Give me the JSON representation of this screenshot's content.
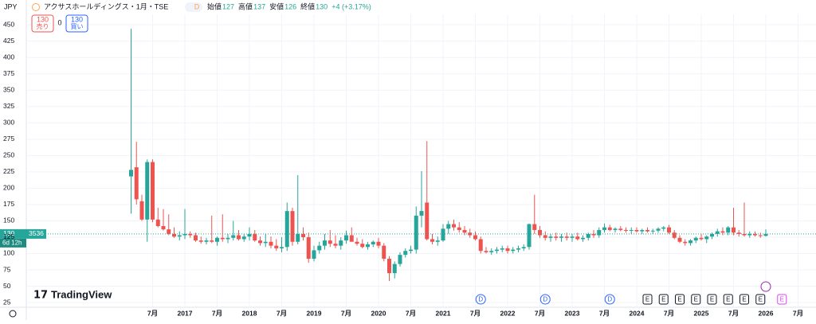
{
  "header": {
    "currency": "JPY",
    "symbol": "アクサスホールディングス・1月・TSE",
    "badge": "D",
    "ohlc": [
      {
        "label": "始値",
        "value": 127
      },
      {
        "label": "高値",
        "value": 137
      },
      {
        "label": "安値",
        "value": 126
      },
      {
        "label": "終値",
        "value": 130
      }
    ],
    "change": "+4 (+3.17%)"
  },
  "trade": {
    "sell_price": "130",
    "sell_label": "売り",
    "spread": "0",
    "buy_price": "130",
    "buy_label": "買い"
  },
  "price_tag": {
    "price": "130",
    "volume": "3536",
    "countdown": "6d 12h"
  },
  "logo": "TradingView",
  "events": [
    {
      "x": "2021-08",
      "label": "D"
    },
    {
      "x": "2022-08",
      "label": "D"
    },
    {
      "x": "2023-08",
      "label": "D"
    },
    {
      "x": "2024-03",
      "label": "E"
    },
    {
      "x": "2024-06",
      "label": "E"
    },
    {
      "x": "2024-09",
      "label": "E"
    },
    {
      "x": "2024-12",
      "label": "E"
    },
    {
      "x": "2025-03",
      "label": "E"
    },
    {
      "x": "2025-06",
      "label": "E"
    },
    {
      "x": "2025-09",
      "label": "E"
    },
    {
      "x": "2025-12",
      "label": "E"
    },
    {
      "x": "2026-04",
      "label": "E"
    }
  ],
  "chart_data": {
    "type": "candlestick",
    "up_color": "#26a69a",
    "down_color": "#ef5350",
    "grid": true,
    "last_price": 130,
    "ylim": [
      19,
      466
    ],
    "yticks": [
      25,
      50,
      75,
      100,
      125,
      150,
      175,
      200,
      225,
      250,
      275,
      300,
      325,
      350,
      375,
      400,
      425,
      450
    ],
    "xticks": [
      {
        "value": "2016-07",
        "label": "7月"
      },
      {
        "value": "2017-01",
        "label": "2017"
      },
      {
        "value": "2017-07",
        "label": "7月"
      },
      {
        "value": "2018-01",
        "label": "2018"
      },
      {
        "value": "2018-07",
        "label": "7月"
      },
      {
        "value": "2019-01",
        "label": "2019"
      },
      {
        "value": "2019-07",
        "label": "7月"
      },
      {
        "value": "2020-01",
        "label": "2020"
      },
      {
        "value": "2020-07",
        "label": "7月"
      },
      {
        "value": "2021-01",
        "label": "2021"
      },
      {
        "value": "2021-07",
        "label": "7月"
      },
      {
        "value": "2022-01",
        "label": "2022"
      },
      {
        "value": "2022-07",
        "label": "7月"
      },
      {
        "value": "2023-01",
        "label": "2023"
      },
      {
        "value": "2023-07",
        "label": "7月"
      },
      {
        "value": "2024-01",
        "label": "2024"
      },
      {
        "value": "2024-07",
        "label": "7月"
      },
      {
        "value": "2025-01",
        "label": "2025"
      },
      {
        "value": "2025-07",
        "label": "7月"
      },
      {
        "value": "2026-01",
        "label": "2026"
      },
      {
        "value": "2026-07",
        "label": "7月"
      }
    ],
    "x": [
      "2016-03",
      "2016-04",
      "2016-05",
      "2016-06",
      "2016-07",
      "2016-08",
      "2016-09",
      "2016-10",
      "2016-11",
      "2016-12",
      "2017-01",
      "2017-02",
      "2017-03",
      "2017-04",
      "2017-05",
      "2017-06",
      "2017-07",
      "2017-08",
      "2017-09",
      "2017-10",
      "2017-11",
      "2017-12",
      "2018-01",
      "2018-02",
      "2018-03",
      "2018-04",
      "2018-05",
      "2018-06",
      "2018-07",
      "2018-08",
      "2018-09",
      "2018-10",
      "2018-11",
      "2018-12",
      "2019-01",
      "2019-02",
      "2019-03",
      "2019-04",
      "2019-05",
      "2019-06",
      "2019-07",
      "2019-08",
      "2019-09",
      "2019-10",
      "2019-11",
      "2019-12",
      "2020-01",
      "2020-02",
      "2020-03",
      "2020-04",
      "2020-05",
      "2020-06",
      "2020-07",
      "2020-08",
      "2020-09",
      "2020-10",
      "2020-11",
      "2020-12",
      "2021-01",
      "2021-02",
      "2021-03",
      "2021-04",
      "2021-05",
      "2021-06",
      "2021-07",
      "2021-08",
      "2021-09",
      "2021-10",
      "2021-11",
      "2021-12",
      "2022-01",
      "2022-02",
      "2022-03",
      "2022-04",
      "2022-05",
      "2022-06",
      "2022-07",
      "2022-08",
      "2022-09",
      "2022-10",
      "2022-11",
      "2022-12",
      "2023-01",
      "2023-02",
      "2023-03",
      "2023-04",
      "2023-05",
      "2023-06",
      "2023-07",
      "2023-08",
      "2023-09",
      "2023-10",
      "2023-11",
      "2023-12",
      "2024-01",
      "2024-02",
      "2024-03",
      "2024-04",
      "2024-05",
      "2024-06",
      "2024-07",
      "2024-08",
      "2024-09",
      "2024-10",
      "2024-11",
      "2024-12",
      "2025-01",
      "2025-02",
      "2025-03",
      "2025-04",
      "2025-05",
      "2025-06",
      "2025-07",
      "2025-08",
      "2025-09",
      "2025-10",
      "2025-11",
      "2025-12",
      "2026-01"
    ],
    "open": [
      218,
      232,
      180,
      152,
      240,
      152,
      142,
      137,
      130,
      126,
      128,
      130,
      128,
      120,
      118,
      120,
      118,
      124,
      122,
      124,
      128,
      122,
      126,
      130,
      120,
      116,
      118,
      112,
      108,
      110,
      165,
      118,
      130,
      125,
      92,
      105,
      112,
      120,
      115,
      112,
      120,
      128,
      118,
      115,
      110,
      114,
      118,
      112,
      92,
      70,
      84,
      98,
      104,
      106,
      158,
      178,
      122,
      118,
      120,
      138,
      145,
      140,
      136,
      132,
      128,
      122,
      104,
      102,
      104,
      106,
      108,
      104,
      106,
      108,
      110,
      145,
      136,
      128,
      124,
      126,
      124,
      126,
      124,
      126,
      122,
      124,
      130,
      128,
      136,
      140,
      136,
      138,
      136,
      135,
      136,
      134,
      136,
      134,
      135,
      138,
      140,
      132,
      124,
      118,
      116,
      120,
      124,
      122,
      126,
      130,
      134,
      132,
      140,
      132,
      130,
      128,
      130,
      128,
      127
    ],
    "high": [
      444,
      271,
      190,
      244,
      244,
      170,
      168,
      160,
      140,
      134,
      168,
      134,
      132,
      126,
      124,
      158,
      126,
      160,
      130,
      150,
      136,
      130,
      140,
      136,
      126,
      130,
      126,
      122,
      125,
      178,
      170,
      220,
      140,
      132,
      112,
      118,
      130,
      136,
      128,
      125,
      135,
      140,
      124,
      122,
      118,
      120,
      124,
      116,
      96,
      88,
      102,
      108,
      112,
      172,
      226,
      272,
      130,
      126,
      145,
      150,
      152,
      148,
      142,
      138,
      134,
      126,
      110,
      108,
      110,
      112,
      112,
      110,
      112,
      114,
      146,
      190,
      142,
      134,
      130,
      132,
      130,
      132,
      130,
      132,
      128,
      132,
      136,
      140,
      146,
      144,
      140,
      142,
      140,
      140,
      140,
      138,
      140,
      138,
      140,
      142,
      144,
      136,
      128,
      122,
      122,
      126,
      130,
      128,
      132,
      138,
      140,
      142,
      170,
      136,
      178,
      134,
      134,
      132,
      137
    ],
    "low": [
      161,
      175,
      150,
      118,
      148,
      140,
      135,
      128,
      124,
      120,
      122,
      124,
      118,
      115,
      114,
      116,
      112,
      118,
      116,
      120,
      120,
      118,
      120,
      118,
      112,
      110,
      108,
      104,
      102,
      104,
      112,
      114,
      120,
      86,
      88,
      100,
      106,
      110,
      108,
      106,
      115,
      120,
      112,
      108,
      106,
      110,
      108,
      88,
      58,
      62,
      80,
      94,
      100,
      100,
      140,
      120,
      114,
      112,
      118,
      130,
      135,
      132,
      128,
      124,
      120,
      100,
      100,
      98,
      100,
      102,
      100,
      100,
      102,
      104,
      106,
      130,
      124,
      120,
      118,
      120,
      118,
      120,
      118,
      120,
      118,
      120,
      124,
      124,
      132,
      134,
      132,
      134,
      132,
      130,
      132,
      130,
      132,
      130,
      132,
      134,
      130,
      122,
      116,
      112,
      112,
      116,
      120,
      116,
      122,
      126,
      128,
      128,
      128,
      126,
      126,
      124,
      126,
      124,
      126
    ],
    "close": [
      228,
      183,
      152,
      240,
      152,
      142,
      137,
      130,
      126,
      128,
      130,
      128,
      120,
      118,
      120,
      118,
      124,
      122,
      124,
      128,
      122,
      126,
      130,
      120,
      116,
      118,
      112,
      108,
      110,
      165,
      118,
      130,
      125,
      92,
      105,
      112,
      120,
      115,
      112,
      120,
      128,
      118,
      115,
      110,
      114,
      118,
      112,
      92,
      70,
      84,
      98,
      104,
      106,
      158,
      165,
      122,
      118,
      120,
      138,
      145,
      140,
      136,
      132,
      128,
      122,
      104,
      102,
      104,
      106,
      108,
      104,
      106,
      108,
      110,
      145,
      136,
      128,
      124,
      126,
      124,
      126,
      124,
      126,
      122,
      124,
      130,
      128,
      136,
      140,
      136,
      138,
      136,
      135,
      136,
      134,
      136,
      134,
      135,
      138,
      140,
      132,
      124,
      118,
      116,
      120,
      124,
      122,
      126,
      130,
      134,
      132,
      140,
      132,
      130,
      128,
      130,
      128,
      127,
      130
    ]
  }
}
